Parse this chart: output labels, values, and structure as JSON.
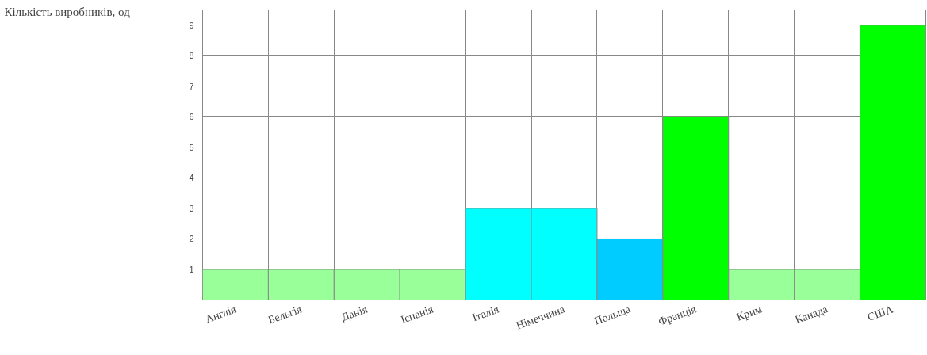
{
  "chart_data": {
    "type": "bar",
    "ylabel": "Кількість виробників, од",
    "categories": [
      "Англія",
      "Бельгія",
      "Данія",
      "Іспанія",
      "Італія",
      "Німеччина",
      "Польща",
      "Франція",
      "Крим",
      "Канада",
      "США"
    ],
    "values": [
      1,
      1,
      1,
      1,
      3,
      3,
      2,
      6,
      1,
      1,
      9
    ],
    "colors": [
      "#99ff99",
      "#99ff99",
      "#99ff99",
      "#99ff99",
      "#00ffff",
      "#00ffff",
      "#00ccff",
      "#00ff00",
      "#99ff99",
      "#99ff99",
      "#00ff00"
    ],
    "ylim": [
      0,
      9.5
    ],
    "yticks": [
      1,
      2,
      3,
      4,
      5,
      6,
      7,
      8,
      9
    ],
    "grid": true
  }
}
